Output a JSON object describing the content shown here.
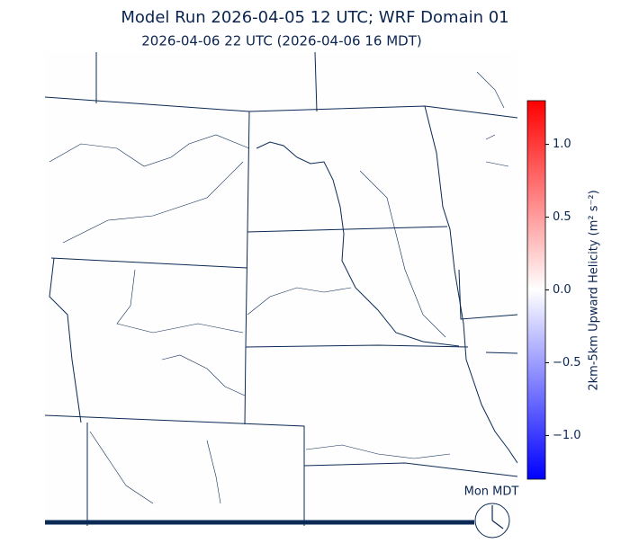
{
  "header": {
    "title": "Model Run 2026-04-05 12 UTC; WRF Domain 01",
    "subtitle": "2026-04-06 22 UTC  (2026-04-06 16 MDT)"
  },
  "colorbar": {
    "label": "2km-5km Upward Helicity (m² s⁻²)",
    "lim": [
      -1.3,
      1.3
    ],
    "ticks": [
      {
        "value": 1,
        "label": "1.0"
      },
      0.5,
      {
        "value": 0,
        "label": "0.0"
      },
      {
        "value": -0.5,
        "label": "−0.5"
      },
      {
        "value": -1,
        "label": "−1.0"
      }
    ]
  },
  "clock": {
    "label": "Mon MDT"
  }
}
